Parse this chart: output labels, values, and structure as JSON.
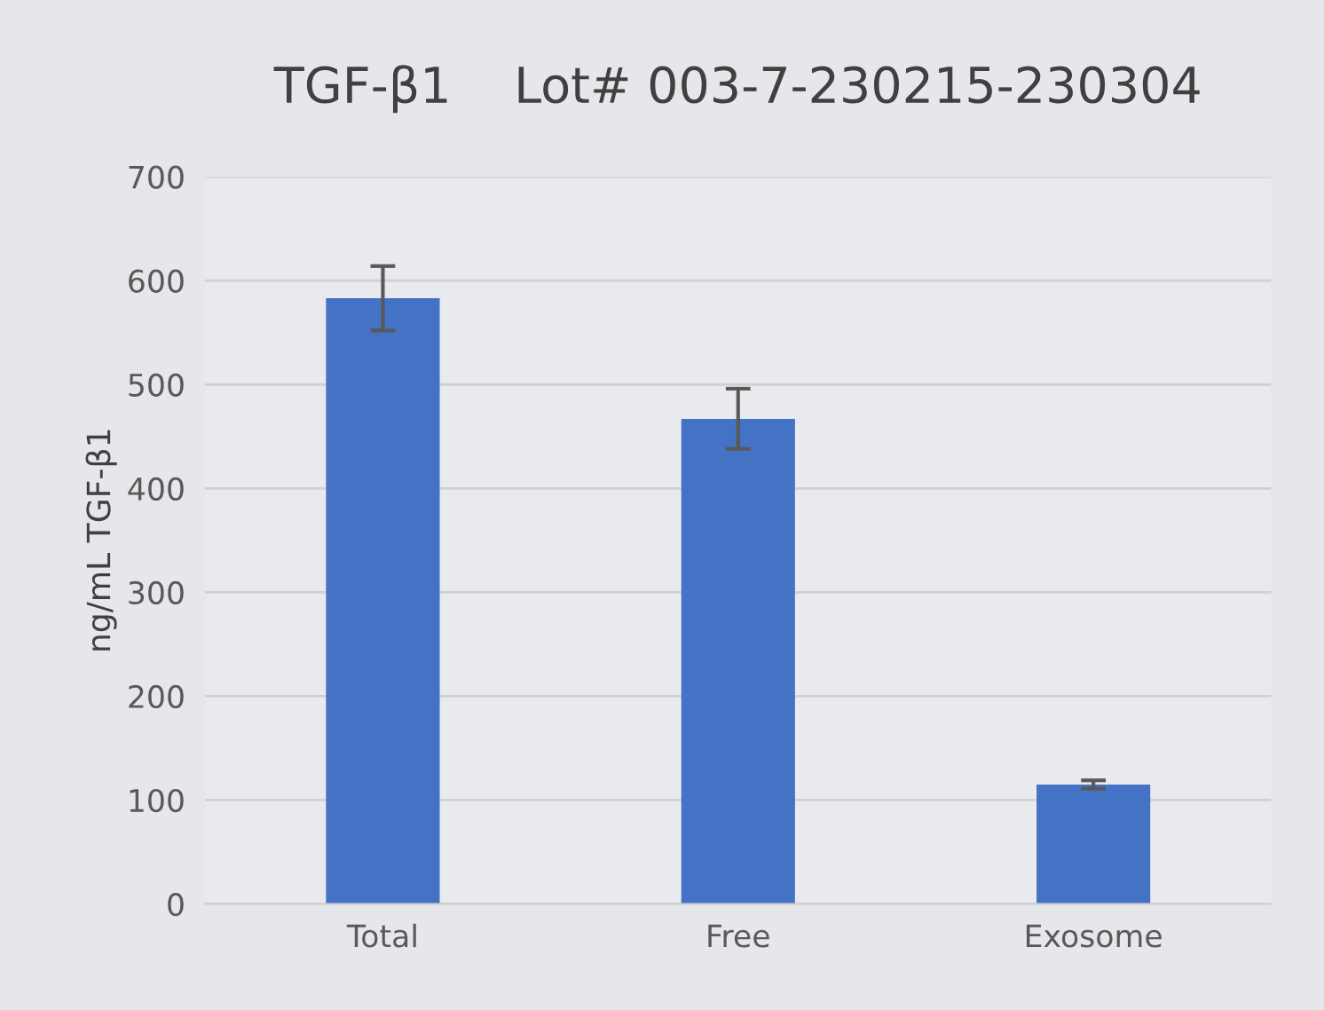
{
  "chart_data": {
    "type": "bar",
    "title": "TGF-β1    Lot# 003-7-230215-230304",
    "ylabel": "ng/mL TGF-β1",
    "categories": [
      "Total",
      "Free",
      "Exosome"
    ],
    "values": [
      583,
      467,
      115
    ],
    "errors": [
      31,
      29,
      4
    ],
    "color": "#4472c4",
    "ylim": [
      0,
      700
    ],
    "yticks": [
      0,
      100,
      200,
      300,
      400,
      500,
      600,
      700
    ],
    "grid": "y"
  }
}
